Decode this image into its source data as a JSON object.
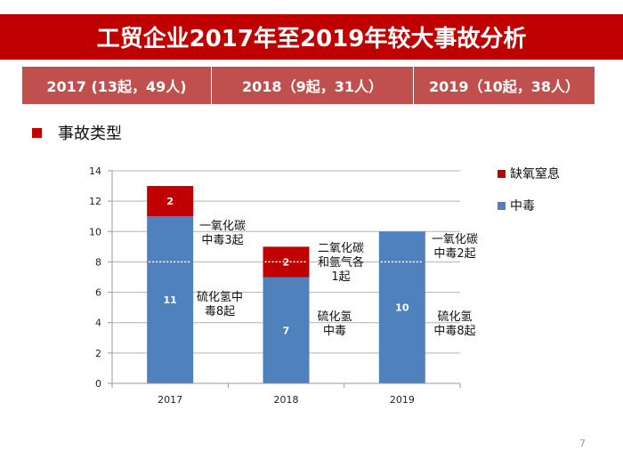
{
  "title": "工贸企业2017年至2019年较大事故分析",
  "year_summary": [
    {
      "label": "2017 (13起，49人)"
    },
    {
      "label": "2018（9起，31人）"
    },
    {
      "label": "2019（10起，38人）"
    }
  ],
  "section_label": "事故类型",
  "page_number": "7",
  "colors": {
    "title_bg": "#c00000",
    "table_bg": "#c0504d",
    "poisoning": "#4f81bd",
    "suffocation": "#c00000"
  },
  "chart_data": {
    "type": "bar",
    "stacked": true,
    "categories": [
      "2017",
      "2018",
      "2019"
    ],
    "series": [
      {
        "name": "中毒",
        "values": [
          11,
          7,
          10
        ],
        "color": "#4f81bd"
      },
      {
        "name": "缺氧窒息",
        "values": [
          2,
          2,
          0
        ],
        "color": "#c00000"
      }
    ],
    "ylim": [
      0,
      14
    ],
    "yticks": [
      0,
      2,
      4,
      6,
      8,
      10,
      12,
      14
    ],
    "grid": true,
    "legend": "right",
    "dotted_marker_value": 8,
    "annotations": [
      {
        "category": "2017",
        "lines": [
          "一氧化碳",
          "中毒3起"
        ]
      },
      {
        "category": "2017",
        "lines": [
          "硫化氢中",
          "毒8起"
        ]
      },
      {
        "category": "2018",
        "lines": [
          "二氧化碳",
          "和氩气各",
          "1起"
        ]
      },
      {
        "category": "2018",
        "lines": [
          "硫化氢",
          "中毒"
        ]
      },
      {
        "category": "2019",
        "lines": [
          "一氧化碳",
          "中毒2起"
        ]
      },
      {
        "category": "2019",
        "lines": [
          "硫化氢",
          "中毒8起"
        ]
      }
    ]
  }
}
